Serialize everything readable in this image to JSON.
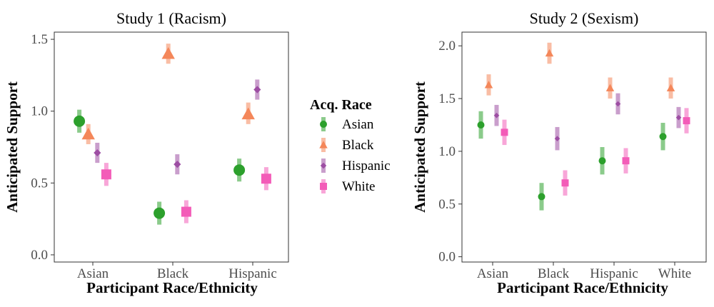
{
  "legend": {
    "title": "Acq. Race",
    "entries": [
      {
        "label": "Asian",
        "color": "#2ca02c",
        "shape": "circle"
      },
      {
        "label": "Black",
        "color": "#f4875a",
        "shape": "triangle"
      },
      {
        "label": "Hispanic",
        "color": "#9d4ea3",
        "shape": "diamond"
      },
      {
        "label": "White",
        "color": "#f35cb8",
        "shape": "square"
      }
    ]
  },
  "chart_data": [
    {
      "type": "scatter",
      "title": "Study 1 (Racism)",
      "xlabel": "Participant Race/Ethnicity",
      "ylabel": "Anticipated Support",
      "categories": [
        "Asian",
        "Black",
        "Hispanic"
      ],
      "ylim": [
        -0.05,
        1.55
      ],
      "yticks": [
        0.0,
        0.5,
        1.0,
        1.5
      ],
      "ytick_labels": [
        "0.0",
        "0.5",
        "1.0",
        "1.5"
      ],
      "grid": false,
      "series": [
        {
          "name": "Asian",
          "values": [
            0.93,
            0.29,
            0.59
          ],
          "lower": [
            0.85,
            0.21,
            0.51
          ],
          "upper": [
            1.01,
            0.37,
            0.67
          ]
        },
        {
          "name": "Black",
          "values": [
            0.84,
            1.4,
            0.98
          ],
          "lower": [
            0.77,
            1.33,
            0.91
          ],
          "upper": [
            0.91,
            1.47,
            1.06
          ]
        },
        {
          "name": "Hispanic",
          "values": [
            0.71,
            0.63,
            1.15
          ],
          "lower": [
            0.64,
            0.56,
            1.08
          ],
          "upper": [
            0.78,
            0.7,
            1.22
          ]
        },
        {
          "name": "White",
          "values": [
            0.56,
            0.3,
            0.53
          ],
          "lower": [
            0.48,
            0.22,
            0.45
          ],
          "upper": [
            0.64,
            0.38,
            0.61
          ]
        }
      ]
    },
    {
      "type": "scatter",
      "title": "Study 2 (Sexism)",
      "xlabel": "Participant Race/Ethnicity",
      "ylabel": "Anticipated Support",
      "categories": [
        "Asian",
        "Black",
        "Hispanic",
        "White"
      ],
      "ylim": [
        -0.05,
        2.13
      ],
      "yticks": [
        0.0,
        0.5,
        1.0,
        1.5,
        2.0
      ],
      "ytick_labels": [
        "0.0",
        "0.5",
        "1.0",
        "1.5",
        "2.0"
      ],
      "grid": false,
      "series": [
        {
          "name": "Asian",
          "values": [
            1.25,
            0.57,
            0.91,
            1.14
          ],
          "lower": [
            1.12,
            0.44,
            0.78,
            1.01
          ],
          "upper": [
            1.38,
            0.7,
            1.04,
            1.27
          ]
        },
        {
          "name": "Black",
          "values": [
            1.63,
            1.93,
            1.6,
            1.6
          ],
          "lower": [
            1.53,
            1.83,
            1.5,
            1.5
          ],
          "upper": [
            1.73,
            2.03,
            1.7,
            1.7
          ]
        },
        {
          "name": "Hispanic",
          "values": [
            1.34,
            1.12,
            1.45,
            1.32
          ],
          "lower": [
            1.24,
            1.01,
            1.35,
            1.22
          ],
          "upper": [
            1.44,
            1.23,
            1.55,
            1.42
          ]
        },
        {
          "name": "White",
          "values": [
            1.18,
            0.7,
            0.91,
            1.29
          ],
          "lower": [
            1.06,
            0.58,
            0.79,
            1.17
          ],
          "upper": [
            1.3,
            0.82,
            1.03,
            1.41
          ]
        }
      ]
    }
  ]
}
